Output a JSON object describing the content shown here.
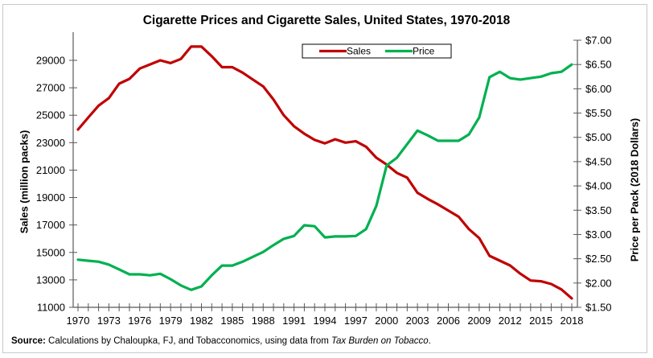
{
  "chart_data": {
    "type": "line",
    "title": "Cigarette Prices and Cigarette Sales, United States, 1970-2018",
    "xlabel": "",
    "ylabel_left": "Sales (million packs)",
    "ylabel_right": "Price per Pack (2018 Dollars)",
    "x": [
      1970,
      1971,
      1972,
      1973,
      1974,
      1975,
      1976,
      1977,
      1978,
      1979,
      1980,
      1981,
      1982,
      1983,
      1984,
      1985,
      1986,
      1987,
      1988,
      1989,
      1990,
      1991,
      1992,
      1993,
      1994,
      1995,
      1996,
      1997,
      1998,
      1999,
      2000,
      2001,
      2002,
      2003,
      2004,
      2005,
      2006,
      2007,
      2008,
      2009,
      2010,
      2011,
      2012,
      2013,
      2014,
      2015,
      2016,
      2017,
      2018
    ],
    "xlim": [
      1970,
      2018
    ],
    "x_tick_labels": [
      "1970",
      "1973",
      "1976",
      "1979",
      "1982",
      "1985",
      "1988",
      "1991",
      "1994",
      "1997",
      "2000",
      "2003",
      "2006",
      "2009",
      "2012",
      "2015",
      "2018"
    ],
    "y_left": {
      "lim": [
        11000,
        30000
      ],
      "ticks": [
        11000,
        13000,
        15000,
        17000,
        19000,
        21000,
        23000,
        25000,
        27000,
        29000
      ],
      "tick_labels": [
        "11000",
        "13000",
        "15000",
        "17000",
        "19000",
        "21000",
        "23000",
        "25000",
        "27000",
        "29000"
      ]
    },
    "y_right": {
      "lim": [
        1.5,
        7.0
      ],
      "ticks": [
        1.5,
        2.0,
        2.5,
        3.0,
        3.5,
        4.0,
        4.5,
        5.0,
        5.5,
        6.0,
        6.5,
        7.0
      ],
      "tick_labels": [
        "$1.50",
        "$2.00",
        "$2.50",
        "$3.00",
        "$3.50",
        "$4.00",
        "$4.50",
        "$5.00",
        "$5.50",
        "$6.00",
        "$6.50",
        "$7.00"
      ]
    },
    "legend": {
      "position": "top-center",
      "entries": [
        "Sales",
        "Price"
      ]
    },
    "grid": false,
    "series": [
      {
        "name": "Sales",
        "axis": "left",
        "color": "#c00000",
        "values": [
          23960,
          24840,
          25700,
          26250,
          27300,
          27650,
          28400,
          28700,
          29000,
          28800,
          29100,
          30000,
          30000,
          29300,
          28500,
          28500,
          28100,
          27600,
          27100,
          26150,
          25000,
          24200,
          23650,
          23200,
          22950,
          23250,
          23000,
          23100,
          22700,
          21900,
          21400,
          20800,
          20450,
          19350,
          18900,
          18500,
          18050,
          17600,
          16700,
          16050,
          14750,
          14400,
          14050,
          13450,
          12950,
          12900,
          12700,
          12300,
          11650
        ]
      },
      {
        "name": "Price",
        "axis": "right",
        "color": "#00b050",
        "values": [
          2.48,
          2.46,
          2.44,
          2.38,
          2.28,
          2.18,
          2.18,
          2.16,
          2.19,
          2.08,
          1.95,
          1.86,
          1.93,
          2.16,
          2.36,
          2.36,
          2.44,
          2.54,
          2.64,
          2.78,
          2.91,
          2.97,
          3.19,
          3.17,
          2.94,
          2.96,
          2.96,
          2.97,
          3.11,
          3.59,
          4.42,
          4.58,
          4.86,
          5.14,
          5.04,
          4.93,
          4.93,
          4.93,
          5.06,
          5.41,
          6.24,
          6.35,
          6.22,
          6.19,
          6.22,
          6.25,
          6.32,
          6.35,
          6.5
        ]
      }
    ]
  },
  "source": {
    "label": "Source:",
    "text": " Calculations by Chaloupka, FJ, and Tobacconomics, using data from ",
    "italic": "Tax Burden on Tobacco",
    "end": "."
  }
}
